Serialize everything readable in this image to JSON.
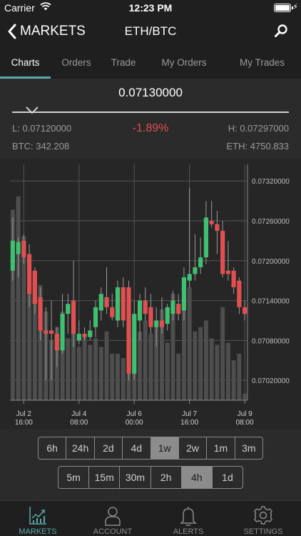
{
  "status_bar": {
    "carrier": "Carrier",
    "time": "12:23 PM"
  },
  "nav": {
    "back_label": "MARKETS",
    "title": "ETH/BTC"
  },
  "tabs": [
    {
      "label": "Charts"
    },
    {
      "label": "Orders"
    },
    {
      "label": "Trade"
    },
    {
      "label": "My Orders"
    },
    {
      "label": "My Trades"
    }
  ],
  "ticker": {
    "last_price": "0.07130000",
    "low": "L: 0.07120000",
    "change": "-1.89%",
    "high": "H: 0.07297000",
    "btc_volume": "BTC: 342.208",
    "eth_volume": "ETH: 4750.833"
  },
  "colors": {
    "up": "#3fbf6f",
    "down": "#e05050",
    "accent": "#5aa9a8",
    "volume": "#4e4e4e"
  },
  "intervals_row1": [
    {
      "label": "6h"
    },
    {
      "label": "24h"
    },
    {
      "label": "2d"
    },
    {
      "label": "4d"
    },
    {
      "label": "1w",
      "selected": true
    },
    {
      "label": "2w"
    },
    {
      "label": "1m"
    },
    {
      "label": "3m"
    }
  ],
  "intervals_row2": [
    {
      "label": "5m"
    },
    {
      "label": "15m"
    },
    {
      "label": "30m"
    },
    {
      "label": "2h"
    },
    {
      "label": "4h",
      "selected": true
    },
    {
      "label": "1d"
    }
  ],
  "tab_bar": [
    {
      "label": "MARKETS",
      "icon": "chart-icon",
      "active": true
    },
    {
      "label": "ACCOUNT",
      "icon": "user-icon"
    },
    {
      "label": "ALERTS",
      "icon": "bell-icon"
    },
    {
      "label": "SETTINGS",
      "icon": "gear-icon"
    }
  ],
  "chart_data": {
    "type": "candlestick",
    "ylim": [
      0.0699,
      0.07345
    ],
    "y_ticks": [
      "0.07320000",
      "0.07260000",
      "0.07200000",
      "0.07140000",
      "0.07080000",
      "0.07020000"
    ],
    "y_tick_values": [
      0.0732,
      0.0726,
      0.072,
      0.0714,
      0.0708,
      0.0702
    ],
    "x_ticks": [
      {
        "line1": "Jul 2",
        "line2": "16:00",
        "index": 2
      },
      {
        "line1": "Jul 4",
        "line2": "08:00",
        "index": 12
      },
      {
        "line1": "Jul 6",
        "line2": "00:00",
        "index": 22
      },
      {
        "line1": "Jul 7",
        "line2": "16:00",
        "index": 32
      },
      {
        "line1": "Jul 9",
        "line2": "08:00",
        "index": 42
      }
    ],
    "candles": [
      {
        "o": 0.07185,
        "h": 0.07265,
        "l": 0.0717,
        "c": 0.0723
      },
      {
        "o": 0.0721,
        "h": 0.07235,
        "l": 0.07175,
        "c": 0.07228
      },
      {
        "o": 0.0723,
        "h": 0.0724,
        "l": 0.07195,
        "c": 0.07205
      },
      {
        "o": 0.0721,
        "h": 0.07225,
        "l": 0.0713,
        "c": 0.0715
      },
      {
        "o": 0.07185,
        "h": 0.0719,
        "l": 0.0712,
        "c": 0.07135
      },
      {
        "o": 0.07145,
        "h": 0.0716,
        "l": 0.0708,
        "c": 0.07095
      },
      {
        "o": 0.07095,
        "h": 0.0713,
        "l": 0.0702,
        "c": 0.0709
      },
      {
        "o": 0.07095,
        "h": 0.0714,
        "l": 0.0702,
        "c": 0.0709
      },
      {
        "o": 0.0709,
        "h": 0.071,
        "l": 0.0704,
        "c": 0.07065
      },
      {
        "o": 0.07065,
        "h": 0.0715,
        "l": 0.0706,
        "c": 0.0712
      },
      {
        "o": 0.0712,
        "h": 0.0715,
        "l": 0.0709,
        "c": 0.07135
      },
      {
        "o": 0.0714,
        "h": 0.072,
        "l": 0.0707,
        "c": 0.0709
      },
      {
        "o": 0.0708,
        "h": 0.0711,
        "l": 0.07075,
        "c": 0.0709
      },
      {
        "o": 0.0709,
        "h": 0.071,
        "l": 0.0708,
        "c": 0.07085
      },
      {
        "o": 0.07085,
        "h": 0.0711,
        "l": 0.0708,
        "c": 0.07095
      },
      {
        "o": 0.071,
        "h": 0.0714,
        "l": 0.07085,
        "c": 0.0713
      },
      {
        "o": 0.07125,
        "h": 0.0716,
        "l": 0.0711,
        "c": 0.0715
      },
      {
        "o": 0.07145,
        "h": 0.0719,
        "l": 0.0712,
        "c": 0.0713
      },
      {
        "o": 0.0713,
        "h": 0.0715,
        "l": 0.0711,
        "c": 0.07115
      },
      {
        "o": 0.0711,
        "h": 0.0717,
        "l": 0.071,
        "c": 0.0716
      },
      {
        "o": 0.0716,
        "h": 0.07175,
        "l": 0.071,
        "c": 0.0711
      },
      {
        "o": 0.0716,
        "h": 0.0717,
        "l": 0.0702,
        "c": 0.0703
      },
      {
        "o": 0.0703,
        "h": 0.0714,
        "l": 0.0702,
        "c": 0.0712
      },
      {
        "o": 0.0711,
        "h": 0.0715,
        "l": 0.0708,
        "c": 0.0714
      },
      {
        "o": 0.0714,
        "h": 0.0716,
        "l": 0.0711,
        "c": 0.0712
      },
      {
        "o": 0.0713,
        "h": 0.0715,
        "l": 0.0709,
        "c": 0.071
      },
      {
        "o": 0.071,
        "h": 0.0713,
        "l": 0.0707,
        "c": 0.0711
      },
      {
        "o": 0.0711,
        "h": 0.07145,
        "l": 0.0709,
        "c": 0.071
      },
      {
        "o": 0.07105,
        "h": 0.07135,
        "l": 0.07095,
        "c": 0.0713
      },
      {
        "o": 0.0712,
        "h": 0.07155,
        "l": 0.0711,
        "c": 0.0714
      },
      {
        "o": 0.07135,
        "h": 0.0715,
        "l": 0.0711,
        "c": 0.0712
      },
      {
        "o": 0.07125,
        "h": 0.0719,
        "l": 0.0711,
        "c": 0.07175
      },
      {
        "o": 0.0717,
        "h": 0.0731,
        "l": 0.0716,
        "c": 0.0718
      },
      {
        "o": 0.0718,
        "h": 0.0724,
        "l": 0.0717,
        "c": 0.0719
      },
      {
        "o": 0.0719,
        "h": 0.07235,
        "l": 0.0718,
        "c": 0.07205
      },
      {
        "o": 0.07205,
        "h": 0.0729,
        "l": 0.07195,
        "c": 0.07265
      },
      {
        "o": 0.0726,
        "h": 0.0729,
        "l": 0.0725,
        "c": 0.07255
      },
      {
        "o": 0.07255,
        "h": 0.07275,
        "l": 0.0721,
        "c": 0.07245
      },
      {
        "o": 0.07245,
        "h": 0.0726,
        "l": 0.07175,
        "c": 0.0718
      },
      {
        "o": 0.07185,
        "h": 0.0723,
        "l": 0.0717,
        "c": 0.0718
      },
      {
        "o": 0.07185,
        "h": 0.0719,
        "l": 0.0715,
        "c": 0.0716
      },
      {
        "o": 0.0717,
        "h": 0.07175,
        "l": 0.0712,
        "c": 0.0713
      },
      {
        "o": 0.0713,
        "h": 0.0714,
        "l": 0.0711,
        "c": 0.0712
      }
    ],
    "volumes": [
      0.86,
      0.92,
      0.74,
      0.65,
      0.58,
      0.52,
      0.4,
      0.27,
      0.33,
      0.4,
      0.28,
      0.37,
      0.24,
      0.3,
      0.25,
      0.28,
      0.24,
      0.31,
      0.21,
      0.21,
      0.19,
      0.23,
      0.3,
      0.31,
      0.36,
      0.3,
      0.33,
      0.41,
      0.26,
      0.48,
      0.21,
      0.54,
      0.51,
      0.31,
      0.33,
      0.36,
      0.28,
      0.25,
      0.42,
      0.26,
      0.18,
      0.21,
      0.03
    ]
  }
}
